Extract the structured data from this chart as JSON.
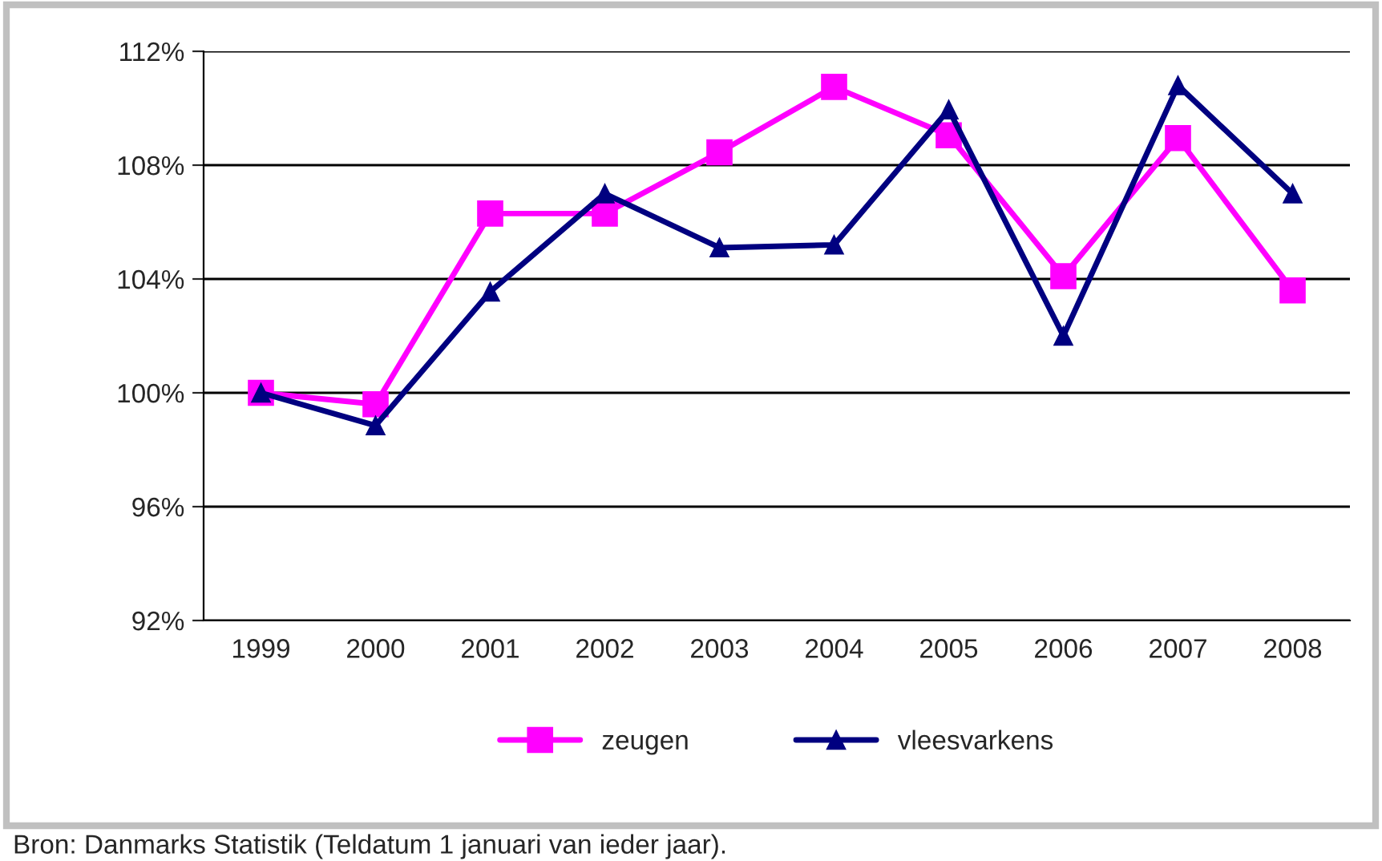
{
  "chart_data": {
    "type": "line",
    "categories": [
      "1999",
      "2000",
      "2001",
      "2002",
      "2003",
      "2004",
      "2005",
      "2006",
      "2007",
      "2008"
    ],
    "series": [
      {
        "name": "zeugen",
        "color": "#ff00ff",
        "marker": "square",
        "values": [
          100,
          99.6,
          106.3,
          106.3,
          108.45,
          110.75,
          109.05,
          104.1,
          108.95,
          103.6
        ]
      },
      {
        "name": "vleesvarkens",
        "color": "#000080",
        "marker": "triangle",
        "values": [
          100,
          98.85,
          103.55,
          107.0,
          105.1,
          105.2,
          109.95,
          102.0,
          110.8,
          107.0
        ]
      }
    ],
    "ylim": [
      92,
      112
    ],
    "yticks": [
      {
        "value": 92,
        "label": "92%"
      },
      {
        "value": 96,
        "label": "96%"
      },
      {
        "value": 100,
        "label": "100%"
      },
      {
        "value": 104,
        "label": "104%"
      },
      {
        "value": 108,
        "label": "108%"
      },
      {
        "value": 112,
        "label": "112%"
      }
    ],
    "grid": "y",
    "legend": "bottom",
    "annotations": [
      "Bron: Danmarks Statistik (Teldatum 1 januari van ieder jaar)."
    ]
  }
}
